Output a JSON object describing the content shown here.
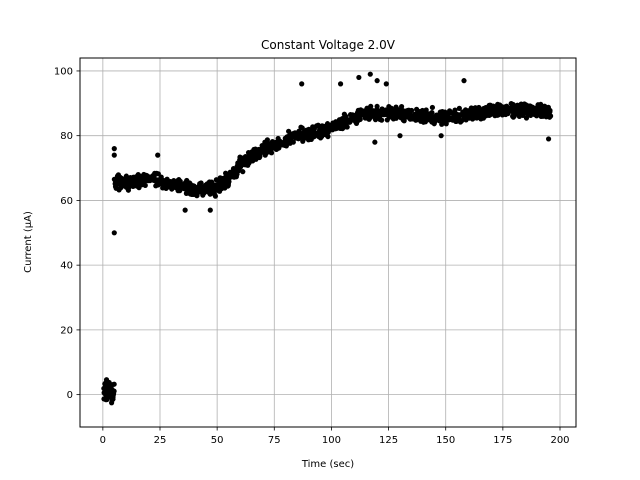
{
  "chart_data": {
    "type": "scatter",
    "title": "Constant Voltage 2.0V",
    "xlabel": "Time (sec)",
    "ylabel": "Current (μA)",
    "xlim": [
      -10,
      207
    ],
    "ylim": [
      -10,
      104
    ],
    "xticks": [
      0,
      25,
      50,
      75,
      100,
      125,
      150,
      175,
      200
    ],
    "yticks": [
      0,
      20,
      40,
      60,
      80,
      100
    ],
    "grid": true,
    "marker_color": "#000000",
    "trend_points": [
      {
        "x": 5,
        "y": 66
      },
      {
        "x": 10,
        "y": 65
      },
      {
        "x": 20,
        "y": 67
      },
      {
        "x": 30,
        "y": 65
      },
      {
        "x": 40,
        "y": 63
      },
      {
        "x": 50,
        "y": 64
      },
      {
        "x": 55,
        "y": 67
      },
      {
        "x": 65,
        "y": 74
      },
      {
        "x": 75,
        "y": 77
      },
      {
        "x": 85,
        "y": 80
      },
      {
        "x": 95,
        "y": 81
      },
      {
        "x": 105,
        "y": 84
      },
      {
        "x": 115,
        "y": 87
      },
      {
        "x": 125,
        "y": 87
      },
      {
        "x": 140,
        "y": 86
      },
      {
        "x": 155,
        "y": 86
      },
      {
        "x": 170,
        "y": 88
      },
      {
        "x": 185,
        "y": 88
      },
      {
        "x": 196,
        "y": 87
      }
    ],
    "outliers": [
      {
        "x": 5,
        "y": 76
      },
      {
        "x": 5,
        "y": 74
      },
      {
        "x": 5,
        "y": 50
      },
      {
        "x": 24,
        "y": 74
      },
      {
        "x": 47,
        "y": 57
      },
      {
        "x": 36,
        "y": 57
      },
      {
        "x": 87,
        "y": 96
      },
      {
        "x": 112,
        "y": 98
      },
      {
        "x": 117,
        "y": 99
      },
      {
        "x": 120,
        "y": 97
      },
      {
        "x": 124,
        "y": 96
      },
      {
        "x": 104,
        "y": 96
      },
      {
        "x": 158,
        "y": 97
      },
      {
        "x": 148,
        "y": 80
      },
      {
        "x": 195,
        "y": 79
      },
      {
        "x": 130,
        "y": 80
      },
      {
        "x": 119,
        "y": 78
      }
    ],
    "initial_cluster": {
      "x_range": [
        0,
        5
      ],
      "y_range": [
        -4,
        8
      ]
    }
  }
}
